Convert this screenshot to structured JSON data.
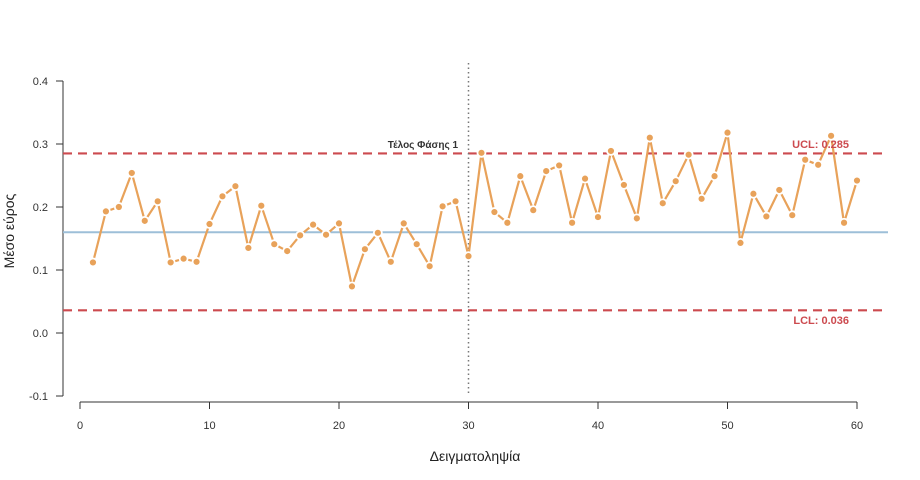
{
  "chart_data": {
    "type": "line",
    "title": "",
    "xlabel": "Δειγματοληψία",
    "ylabel": "Μέσο εύρος",
    "xlim": [
      0,
      60
    ],
    "ylim": [
      -0.1,
      0.4
    ],
    "xticks": [
      0,
      10,
      20,
      30,
      40,
      50,
      60
    ],
    "xtick_labels": [
      "0",
      "10",
      "20",
      "30",
      "40",
      "50",
      "60"
    ],
    "yticks": [
      -0.1,
      0.0,
      0.1,
      0.2,
      0.3,
      0.4
    ],
    "ytick_labels": [
      "-0.1",
      "0.0",
      "0.1",
      "0.2",
      "0.3",
      "0.4"
    ],
    "grid": false,
    "legend": "none",
    "series": [
      {
        "color": "#E8A25A",
        "x": [
          1,
          2,
          3,
          4,
          5,
          6,
          7,
          8,
          9,
          10,
          11,
          12,
          13,
          14,
          15,
          16,
          17,
          18,
          19,
          20,
          21,
          22,
          23,
          24,
          25,
          26,
          27,
          28,
          29,
          30,
          31,
          32,
          33,
          34,
          35,
          36,
          37,
          38,
          39,
          40,
          41,
          42,
          43,
          44,
          45,
          46,
          47,
          48,
          49,
          50,
          51,
          52,
          53,
          54,
          55,
          56,
          57,
          58,
          59,
          60
        ],
        "values": [
          0.112,
          0.193,
          0.2,
          0.254,
          0.178,
          0.209,
          0.112,
          0.118,
          0.113,
          0.173,
          0.217,
          0.233,
          0.135,
          0.202,
          0.141,
          0.13,
          0.155,
          0.172,
          0.156,
          0.174,
          0.074,
          0.133,
          0.159,
          0.113,
          0.174,
          0.141,
          0.106,
          0.201,
          0.209,
          0.122,
          0.286,
          0.192,
          0.175,
          0.249,
          0.195,
          0.257,
          0.266,
          0.175,
          0.245,
          0.184,
          0.289,
          0.235,
          0.182,
          0.31,
          0.206,
          0.241,
          0.283,
          0.213,
          0.249,
          0.318,
          0.143,
          0.221,
          0.185,
          0.227,
          0.187,
          0.275,
          0.267,
          0.313,
          0.175,
          0.242
        ]
      }
    ],
    "reference_lines": {
      "center": {
        "value": 0.16,
        "color": "#9DBFD8"
      },
      "ucl": {
        "value": 0.285,
        "label": "UCL: 0.285",
        "color": "#CC4A4F"
      },
      "lcl": {
        "value": 0.036,
        "label": "LCL: 0.036",
        "color": "#CC4A4F"
      },
      "phase_end": {
        "x": 30,
        "label": "Τέλος Φάσης 1",
        "color": "#777777"
      }
    }
  }
}
